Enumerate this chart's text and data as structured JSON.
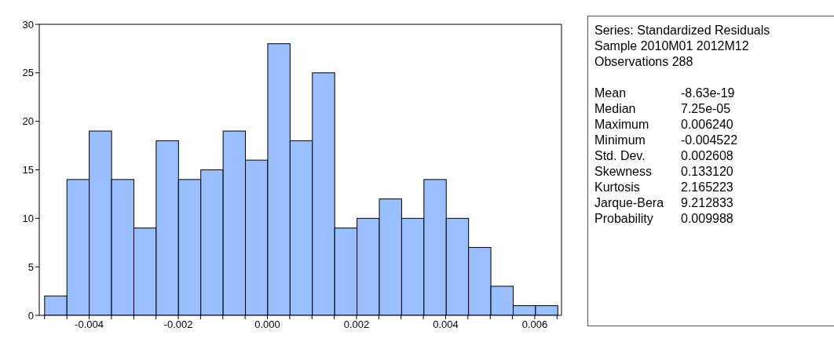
{
  "chart_data": {
    "type": "histogram",
    "bins": [
      -0.005,
      -0.0045,
      -0.004,
      -0.0035,
      -0.003,
      -0.0025,
      -0.002,
      -0.0015,
      -0.001,
      -0.0005,
      0,
      0.0005,
      0.001,
      0.0015,
      0.002,
      0.0025,
      0.003,
      0.0035,
      0.004,
      0.0045,
      0.005,
      0.0055,
      0.006,
      0.0065
    ],
    "values": [
      2,
      14,
      19,
      14,
      9,
      18,
      14,
      15,
      19,
      16,
      28,
      18,
      25,
      9,
      10,
      12,
      10,
      14,
      10,
      7,
      3,
      1,
      1
    ],
    "color": "#99bfff",
    "xlim": [
      -0.00512,
      0.0066
    ],
    "xticks": [
      {
        "value": -0.005,
        "label": null
      },
      {
        "value": -0.0045,
        "label": null
      },
      {
        "value": -0.004,
        "label": "-0.004"
      },
      {
        "value": -0.0035,
        "label": null
      },
      {
        "value": -0.003,
        "label": null
      },
      {
        "value": -0.0025,
        "label": null
      },
      {
        "value": -0.002,
        "label": "-0.002"
      },
      {
        "value": -0.0015,
        "label": null
      },
      {
        "value": -0.001,
        "label": null
      },
      {
        "value": -0.0005,
        "label": null
      },
      {
        "value": 0,
        "label": "0.000"
      },
      {
        "value": 0.0005,
        "label": null
      },
      {
        "value": 0.001,
        "label": null
      },
      {
        "value": 0.0015,
        "label": null
      },
      {
        "value": 0.002,
        "label": "0.002"
      },
      {
        "value": 0.0025,
        "label": null
      },
      {
        "value": 0.003,
        "label": null
      },
      {
        "value": 0.0035,
        "label": null
      },
      {
        "value": 0.004,
        "label": "0.004"
      },
      {
        "value": 0.0045,
        "label": null
      },
      {
        "value": 0.005,
        "label": null
      },
      {
        "value": 0.0055,
        "label": null
      },
      {
        "value": 0.006,
        "label": "0.006"
      },
      {
        "value": 0.0065,
        "label": null
      }
    ],
    "ylim": [
      0,
      30
    ],
    "yticks": [
      0,
      5,
      10,
      15,
      20,
      25,
      30
    ],
    "grid": false,
    "legend": false,
    "annotations": [
      "Series: Standardized Residuals",
      "Sample 2010M01 2012M12",
      "Observations 288",
      "Mean  -8.63e-19",
      "Median  7.25e-05",
      "Maximum  0.006240",
      "Minimum  -0.004522",
      "Std. Dev.  0.002608",
      "Skewness  0.133120",
      "Kurtosis  2.165223",
      "Jarque-Bera  9.212833",
      "Probability  0.009988"
    ]
  }
}
